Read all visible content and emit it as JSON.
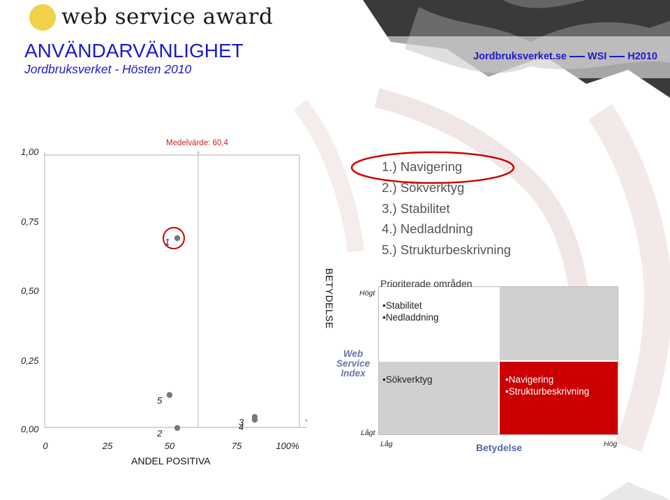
{
  "header": {
    "logo_text": "web service award",
    "title": "ANVÄNDARVÄNLIGHET",
    "subtitle": "Jordbruksverket - Hösten 2010",
    "right_parts": [
      "Jordbruksverket.se",
      "WSI",
      "H2010"
    ]
  },
  "scatter": {
    "mean_label": "Medelvärde: 60,4",
    "x_title": "ANDEL POSITIVA",
    "y_axis_title": "BETYDELSE"
  },
  "priorities": {
    "items": [
      "1.) Navigering",
      "2.) Sökverktyg",
      "3.) Stabilitet",
      "4.) Nedladdning",
      "5.) Strukturbeskrivning"
    ]
  },
  "matrix": {
    "y_title": [
      "Web",
      "Service",
      "Index"
    ],
    "y_high": "Högt",
    "y_low": "Lågt",
    "x_low": "Låg",
    "x_title": "Betydelse",
    "x_high": "Hög",
    "top_left_heading": "Prioriterade områden",
    "top_left_items": [
      "Stabilitet",
      "Nedladdning"
    ],
    "bottom_left_items": [
      "Sökverktyg"
    ],
    "bottom_right_items": [
      "Navigering",
      "Strukturbeskrivning"
    ]
  },
  "colors": {
    "title_blue": "#1a1acc",
    "highlight_red": "#cc0000",
    "quadrant_gray": "#d0d0d0",
    "mean_line_gray": "#bdbdbd",
    "logo_yellow": "#f0d24a"
  },
  "chart_data": {
    "type": "scatter",
    "title": "",
    "xlabel": "ANDEL POSITIVA",
    "ylabel": "BETYDELSE",
    "x_ticks": [
      "0",
      "25",
      "50",
      "75",
      "100%"
    ],
    "y_ticks": [
      "1,00",
      "0,75",
      "0,50",
      "0,25",
      "0,00"
    ],
    "xlim": [
      0,
      100
    ],
    "ylim": [
      0,
      1
    ],
    "mean_x": 60.4,
    "grid": false,
    "points": [
      {
        "label": "1",
        "x": 50,
        "y": 0.67,
        "highlighted": true
      },
      {
        "label": "2",
        "x": 50,
        "y": -0.02
      },
      {
        "label": "3",
        "x": 80,
        "y": 0.02
      },
      {
        "label": "4",
        "x": 80,
        "y": 0.01
      },
      {
        "label": "5",
        "x": 47,
        "y": 0.1
      }
    ]
  }
}
